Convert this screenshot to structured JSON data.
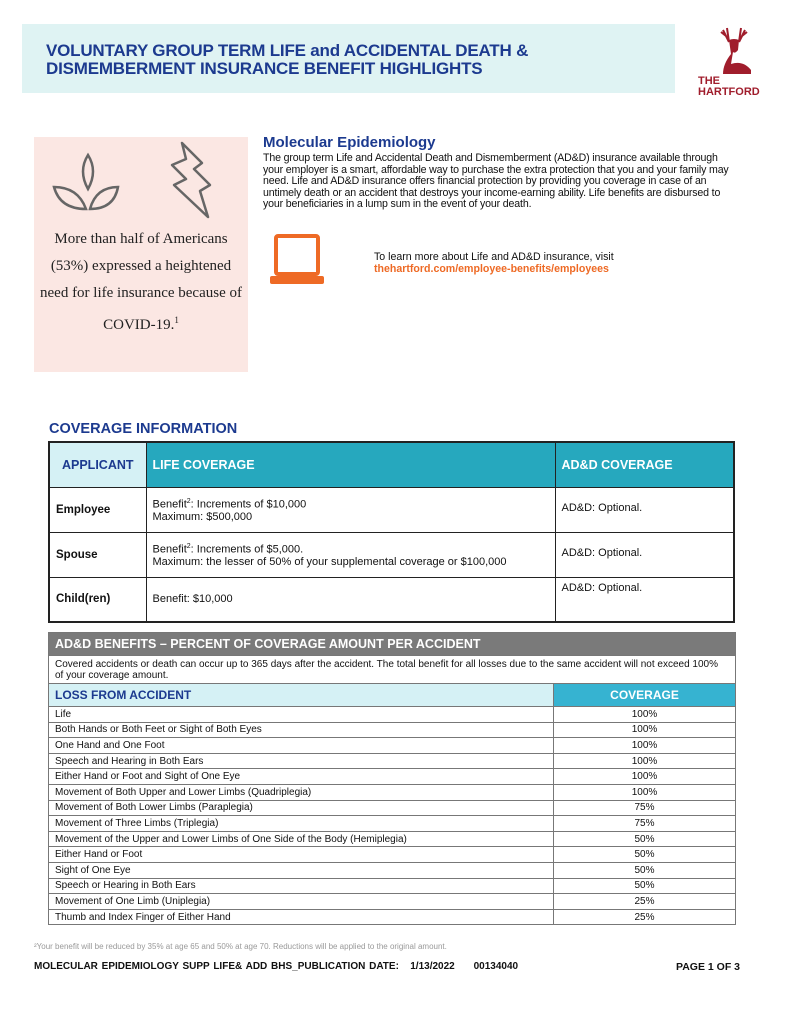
{
  "header": {
    "title_line1": "VOLUNTARY GROUP TERM LIFE and ACCIDENTAL DEATH &",
    "title_line2": "DISMEMBERMENT INSURANCE BENEFIT HIGHLIGHTS",
    "logo_text_1": "THE",
    "logo_text_2": "HARTFORD",
    "logo_color": "#a01d2c",
    "bg": "#dff3f3"
  },
  "sidebar": {
    "icons": [
      "leaf-sprout-icon",
      "lightning-icon"
    ],
    "stat": "More than half of Americans (53%) expressed a heightened need for life insurance because of COVID-19.",
    "stat_sup": "1"
  },
  "intro": {
    "title": "Molecular Epidemiology",
    "body": "The group term Life and Accidental Death and Dismemberment (AD&D) insurance available through your employer is a smart, affordable way to purchase the extra protection that you and your family may need. Life and AD&D insurance offers financial protection by providing you coverage in case of an untimely death or an accident that destroys your income-earning ability. Life benefits are disbursed to your beneficiaries in a lump sum in the event of your death.",
    "learn_text": "To learn more about Life and AD&D insurance, visit",
    "learn_link": "thehartford.com/employee-benefits/employees",
    "icon": "laptop-icon",
    "accent": "#ee6a25"
  },
  "coverage": {
    "title": "COVERAGE INFORMATION",
    "headers": [
      "APPLICANT",
      "LIFE COVERAGE",
      "AD&D COVERAGE"
    ],
    "rows": [
      {
        "applicant": "Employee",
        "life1_pre": "Benefit",
        "life1_sup": "2",
        "life1_post": ": Increments of $10,000",
        "life2": "Maximum: $500,000",
        "add": "AD&D: Optional."
      },
      {
        "applicant": "Spouse",
        "life1_pre": "Benefit",
        "life1_sup": "2",
        "life1_post": ": Increments of $5,000.",
        "life2": "Maximum: the lesser of 50% of your supplemental coverage or $100,000",
        "add": "AD&D: Optional."
      },
      {
        "applicant": "Child(ren)",
        "life1_pre": "Benefit: $10,000",
        "life1_sup": "",
        "life1_post": "",
        "life2": "",
        "add": "AD&D: Optional."
      }
    ]
  },
  "add_benefits": {
    "title": "AD&D BENEFITS – PERCENT OF COVERAGE AMOUNT PER ACCIDENT",
    "desc": "Covered accidents or death can occur up to 365 days after the accident. The total benefit for all losses due to the same accident will not exceed 100% of your coverage amount.",
    "headers": [
      "LOSS FROM ACCIDENT",
      "COVERAGE"
    ],
    "rows": [
      {
        "loss": "Life",
        "coverage": "100%"
      },
      {
        "loss": "Both Hands or Both Feet or Sight of Both Eyes",
        "coverage": "100%"
      },
      {
        "loss": "One Hand and One Foot",
        "coverage": "100%"
      },
      {
        "loss": "Speech and Hearing in Both Ears",
        "coverage": "100%"
      },
      {
        "loss": "Either Hand or Foot and Sight of One Eye",
        "coverage": "100%"
      },
      {
        "loss": "Movement of Both Upper and Lower Limbs (Quadriplegia)",
        "coverage": "100%"
      },
      {
        "loss": "Movement of Both Lower Limbs (Paraplegia)",
        "coverage": "75%"
      },
      {
        "loss": "Movement of Three Limbs (Triplegia)",
        "coverage": "75%"
      },
      {
        "loss": "Movement of the Upper and Lower Limbs of One Side of the Body (Hemiplegia)",
        "coverage": "50%"
      },
      {
        "loss": "Either Hand or Foot",
        "coverage": "50%"
      },
      {
        "loss": "Sight of One Eye",
        "coverage": "50%"
      },
      {
        "loss": "Speech or Hearing in Both Ears",
        "coverage": "50%"
      },
      {
        "loss": "Movement of One Limb (Uniplegia)",
        "coverage": "25%"
      },
      {
        "loss": "Thumb and Index Finger of Either Hand",
        "coverage": "25%"
      }
    ]
  },
  "footer": {
    "footnote": "²Your benefit will be reduced by 35% at age 65 and 50% at age 70. Reductions will be applied to the original amount.",
    "publication": "MOLECULAR EPIDEMIOLOGY SUPP LIFE& ADD BHS_PUBLICATION DATE:   1/13/2022     00134040",
    "page": "PAGE 1 OF 3"
  }
}
